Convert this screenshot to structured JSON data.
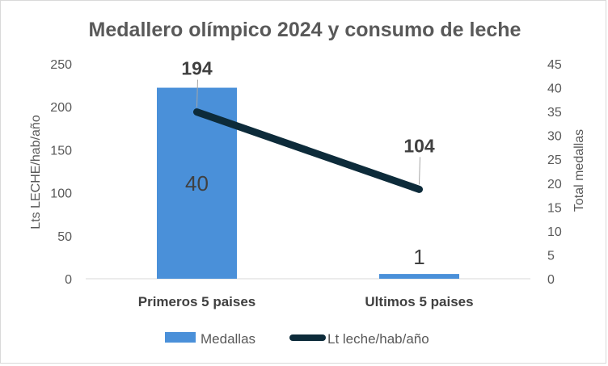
{
  "chart_data": {
    "type": "bar",
    "title": "Medallero olímpico 2024 y consumo de leche",
    "categories": [
      "Primeros 5 paises",
      "Ultimos 5 paises"
    ],
    "series": [
      {
        "name": "Medallas",
        "type": "bar",
        "axis": "secondary",
        "values": [
          40,
          1
        ],
        "color": "#4a90d9"
      },
      {
        "name": "Lt leche/hab/año",
        "type": "line",
        "axis": "primary",
        "values": [
          194,
          104
        ],
        "color": "#0d2b3a"
      }
    ],
    "ylabel": "Lts LECHE/hab/año",
    "ylim": [
      0,
      250
    ],
    "yticks": [
      0,
      50,
      100,
      150,
      200,
      250
    ],
    "y2label": "Total medallas",
    "y2lim": [
      0,
      45
    ],
    "y2ticks": [
      0,
      5,
      10,
      15,
      20,
      25,
      30,
      35,
      40,
      45
    ],
    "legend_position": "bottom",
    "grid": false
  }
}
